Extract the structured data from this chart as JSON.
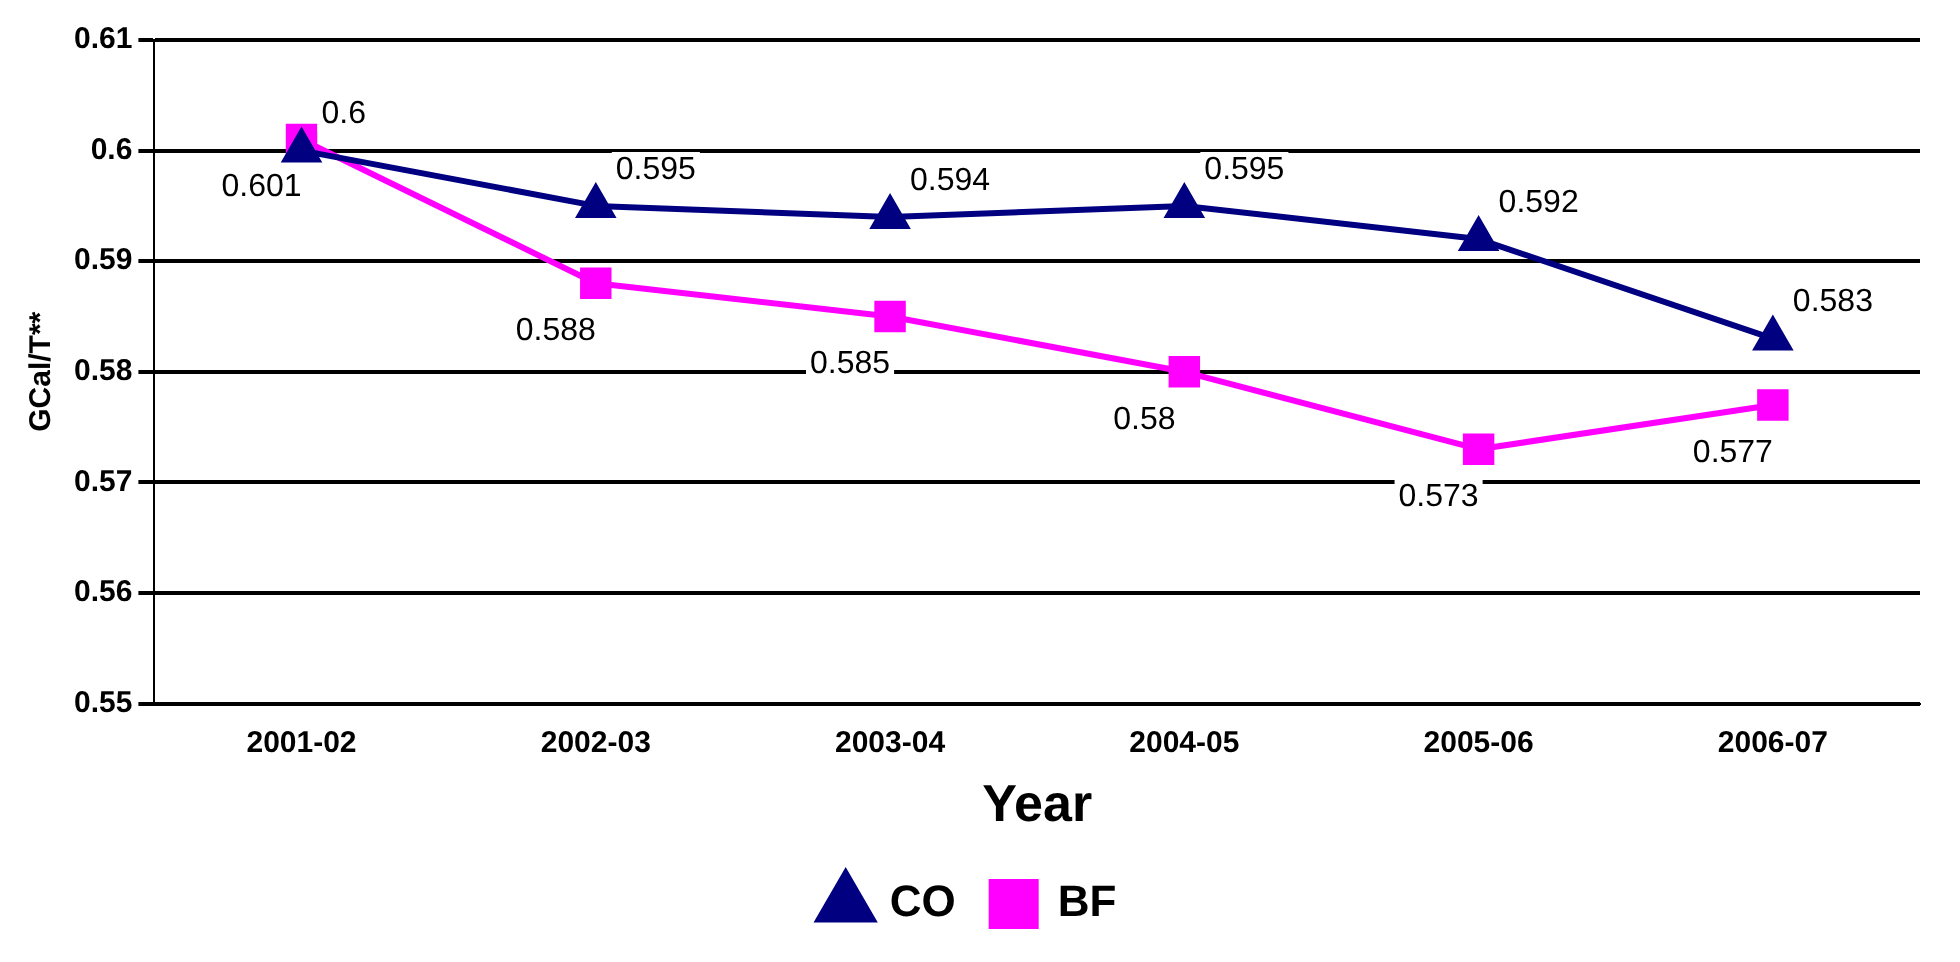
{
  "chart_data": {
    "type": "line",
    "xlabel": "Year",
    "ylabel": "GCal/T**",
    "categories": [
      "2001-02",
      "2002-03",
      "2003-04",
      "2004-05",
      "2005-06",
      "2006-07"
    ],
    "series": [
      {
        "name": "CO",
        "color": "#000080",
        "marker": "triangle",
        "values": [
          0.6,
          0.595,
          0.594,
          0.595,
          0.592,
          0.583
        ]
      },
      {
        "name": "BF",
        "color": "#ff00ff",
        "marker": "square",
        "values": [
          0.601,
          0.588,
          0.585,
          0.58,
          0.573,
          0.577
        ]
      }
    ],
    "data_labels": true,
    "ylim": [
      0.55,
      0.61
    ],
    "yticks": [
      0.55,
      0.56,
      0.57,
      0.58,
      0.59,
      0.6,
      0.61
    ],
    "grid": "y",
    "legend": "bottom"
  }
}
